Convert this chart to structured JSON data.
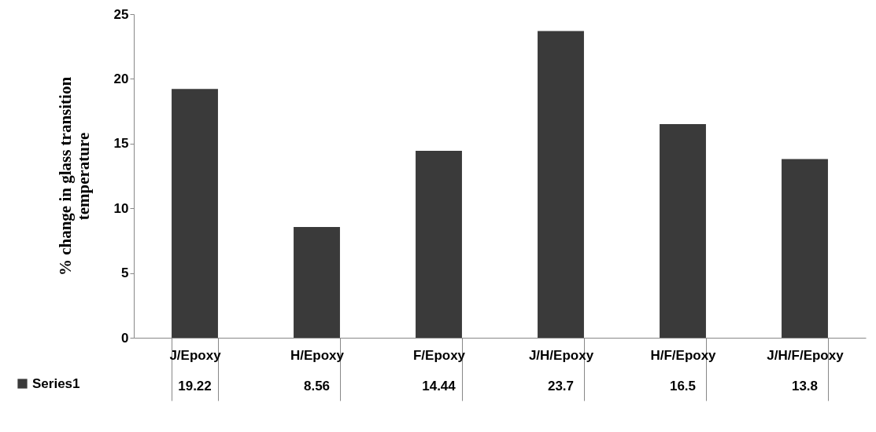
{
  "chart_data": {
    "type": "bar",
    "ylabel": "% change in glass transition temperature",
    "categories": [
      "J/Epoxy",
      "H/Epoxy",
      "F/Epoxy",
      "J/H/Epoxy",
      "H/F/Epoxy",
      "J/H/F/Epoxy"
    ],
    "series": [
      {
        "name": "Series1",
        "color": "#3a3a3a",
        "values": [
          19.22,
          8.56,
          14.44,
          23.7,
          16.5,
          13.8
        ]
      }
    ],
    "ylim": [
      0,
      25
    ],
    "yticks": [
      0,
      5,
      10,
      15,
      20,
      25
    ],
    "grid": false,
    "data_labels": true,
    "legend": "bottom left"
  }
}
